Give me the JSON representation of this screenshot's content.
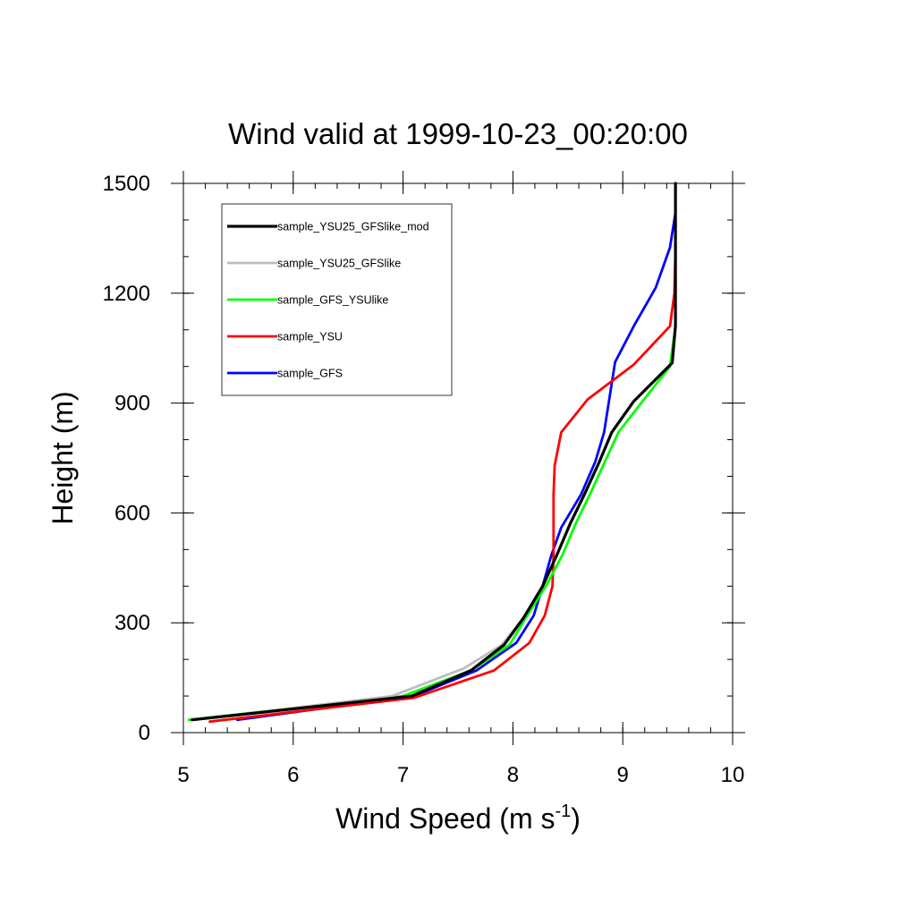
{
  "chart_data": {
    "type": "line",
    "title": "Wind valid at 1999-10-23_00:20:00",
    "xlabel": "Wind Speed (m s",
    "xlabel_superscript": "-1",
    "xlabel_suffix": ")",
    "ylabel": "Height (m)",
    "xlim": [
      5,
      10
    ],
    "ylim": [
      0,
      1500
    ],
    "x_ticks": [
      5,
      6,
      7,
      8,
      9,
      10
    ],
    "x_tick_labels": [
      "5",
      "6",
      "7",
      "8",
      "9",
      "10"
    ],
    "y_ticks": [
      0,
      300,
      600,
      900,
      1200,
      1500
    ],
    "y_tick_labels": [
      "0",
      "300",
      "600",
      "900",
      "1200",
      "1500"
    ],
    "x_minor_step": 0.2,
    "y_minor_step": 100,
    "grid": false,
    "legend_position": "top-left",
    "series": [
      {
        "name": "sample_YSU25_GFSlike_mod",
        "color": "#000000",
        "points": [
          [
            5.08,
            35
          ],
          [
            7.08,
            100
          ],
          [
            7.62,
            170
          ],
          [
            7.92,
            240
          ],
          [
            8.1,
            315
          ],
          [
            8.27,
            400
          ],
          [
            8.4,
            485
          ],
          [
            8.52,
            570
          ],
          [
            8.65,
            650
          ],
          [
            8.78,
            735
          ],
          [
            8.9,
            820
          ],
          [
            9.1,
            905
          ],
          [
            9.45,
            1010
          ],
          [
            9.48,
            1110
          ],
          [
            9.48,
            1200
          ],
          [
            9.48,
            1320
          ],
          [
            9.48,
            1500
          ]
        ]
      },
      {
        "name": "sample_YSU25_GFSlike",
        "color": "#bdbdbd",
        "points": [
          [
            5.1,
            35
          ],
          [
            6.9,
            100
          ],
          [
            7.55,
            175
          ],
          [
            7.9,
            240
          ],
          [
            8.1,
            315
          ],
          [
            8.27,
            400
          ],
          [
            8.4,
            485
          ],
          [
            8.52,
            570
          ],
          [
            8.65,
            650
          ],
          [
            8.78,
            735
          ],
          [
            8.9,
            820
          ],
          [
            9.1,
            905
          ],
          [
            9.45,
            1010
          ],
          [
            9.48,
            1110
          ],
          [
            9.48,
            1200
          ],
          [
            9.48,
            1320
          ],
          [
            9.48,
            1500
          ]
        ]
      },
      {
        "name": "sample_GFS_YSUlike",
        "color": "#00ff00",
        "points": [
          [
            5.05,
            35
          ],
          [
            7.0,
            100
          ],
          [
            7.62,
            170
          ],
          [
            7.97,
            240
          ],
          [
            8.12,
            315
          ],
          [
            8.3,
            400
          ],
          [
            8.45,
            485
          ],
          [
            8.57,
            570
          ],
          [
            8.7,
            650
          ],
          [
            8.83,
            735
          ],
          [
            8.96,
            820
          ],
          [
            9.18,
            905
          ],
          [
            9.43,
            1000
          ],
          [
            9.48,
            1110
          ],
          [
            9.48,
            1200
          ],
          [
            9.48,
            1320
          ],
          [
            9.48,
            1500
          ]
        ]
      },
      {
        "name": "sample_YSU",
        "color": "#ff0000",
        "points": [
          [
            5.24,
            30
          ],
          [
            7.1,
            95
          ],
          [
            7.83,
            170
          ],
          [
            8.15,
            245
          ],
          [
            8.29,
            320
          ],
          [
            8.36,
            400
          ],
          [
            8.37,
            485
          ],
          [
            8.37,
            570
          ],
          [
            8.37,
            650
          ],
          [
            8.38,
            730
          ],
          [
            8.44,
            820
          ],
          [
            8.68,
            910
          ],
          [
            9.1,
            1005
          ],
          [
            9.43,
            1110
          ],
          [
            9.47,
            1200
          ],
          [
            9.48,
            1320
          ],
          [
            9.48,
            1500
          ]
        ]
      },
      {
        "name": "sample_GFS",
        "color": "#0000ff",
        "points": [
          [
            5.49,
            35
          ],
          [
            7.1,
            100
          ],
          [
            7.67,
            170
          ],
          [
            8.03,
            245
          ],
          [
            8.19,
            320
          ],
          [
            8.27,
            400
          ],
          [
            8.35,
            485
          ],
          [
            8.44,
            560
          ],
          [
            8.62,
            650
          ],
          [
            8.75,
            740
          ],
          [
            8.83,
            820
          ],
          [
            8.93,
            1012
          ],
          [
            9.1,
            1110
          ],
          [
            9.3,
            1215
          ],
          [
            9.43,
            1325
          ],
          [
            9.48,
            1420
          ],
          [
            9.48,
            1500
          ]
        ]
      }
    ]
  }
}
